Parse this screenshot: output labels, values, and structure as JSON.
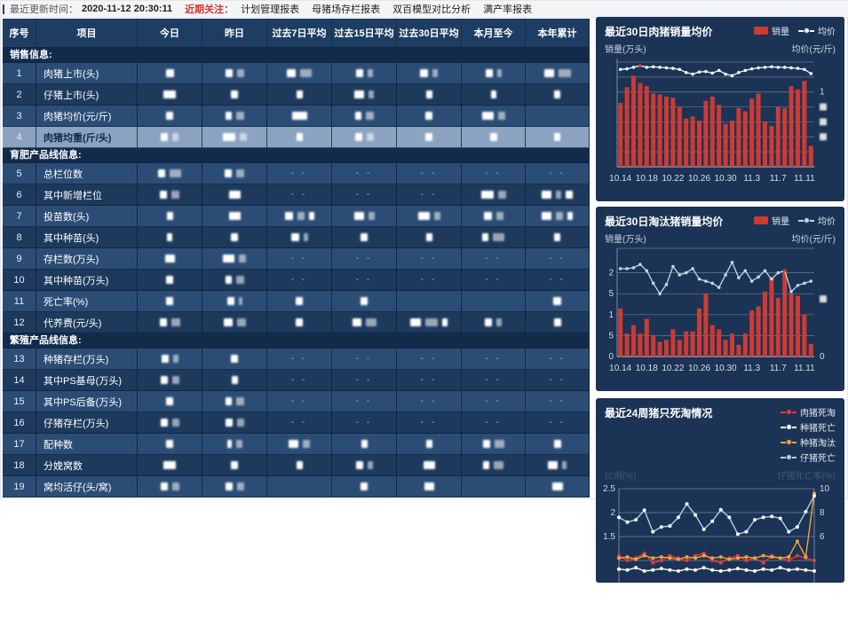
{
  "topbar": {
    "updated_label": "最近更新时间：",
    "updated_time": "2020-11-12 20:30:11",
    "focus_label": "近期关注：",
    "links": [
      "计划管理报表",
      "母猪场存栏报表",
      "双百模型对比分析",
      "满产率报表"
    ]
  },
  "table": {
    "columns": [
      "序号",
      "项目",
      "今日",
      "昨日",
      "过去7日平均",
      "过去15日平均",
      "过去30日平均",
      "本月至今",
      "本年累计"
    ],
    "redacted_note": "数值已打码",
    "sections": [
      {
        "title": "销售信息:",
        "rows": [
          {
            "no": "1",
            "label": "肉猪上市(头)",
            "cells": [
              [
                9
              ],
              [
                8,
                8
              ],
              [
                10,
                13
              ],
              [
                8,
                6
              ],
              [
                9,
                6
              ],
              [
                8,
                5
              ],
              [
                11,
                14
              ]
            ]
          },
          {
            "no": "2",
            "label": "仔猪上市(头)",
            "cells": [
              [
                14
              ],
              [
                8
              ],
              [
                7
              ],
              [
                11,
                6
              ],
              [
                7
              ],
              [
                6
              ],
              [
                7
              ]
            ]
          },
          {
            "no": "3",
            "label": "肉猪均价(元/斤)",
            "cells": [
              [
                8
              ],
              [
                7,
                9
              ],
              [
                17
              ],
              [
                7,
                9
              ],
              [
                8
              ],
              [
                13,
                8
              ],
              null
            ]
          },
          {
            "no": "4",
            "label": "肉猪均重(斤/头)",
            "highlight": true,
            "cells": [
              [
                8,
                7
              ],
              [
                14,
                8
              ],
              [
                7
              ],
              [
                8,
                8
              ],
              [
                8
              ],
              [
                8
              ],
              [
                7
              ]
            ]
          }
        ]
      },
      {
        "title": "育肥产品线信息:",
        "rows": [
          {
            "no": "5",
            "label": "总栏位数",
            "cells": [
              [
                8,
                13
              ],
              [
                8,
                9
              ],
              "--",
              "--",
              "--",
              "--",
              "--"
            ]
          },
          {
            "no": "6",
            "label": "其中新增栏位",
            "cells": [
              [
                8,
                9
              ],
              [
                13
              ],
              "--",
              "--",
              "--",
              [
                14,
                9
              ],
              [
                11,
                6,
                8
              ]
            ]
          },
          {
            "no": "7",
            "label": "投苗数(头)",
            "cells": [
              [
                7
              ],
              [
                13
              ],
              [
                9,
                8,
                6
              ],
              [
                11,
                7
              ],
              [
                13,
                7
              ],
              [
                9,
                8
              ],
              [
                11,
                8,
                6
              ]
            ]
          },
          {
            "no": "8",
            "label": "其中种苗(头)",
            "cells": [
              [
                6
              ],
              [
                8
              ],
              [
                9,
                5
              ],
              [
                8
              ],
              [
                7
              ],
              [
                7,
                13
              ],
              [
                7
              ]
            ]
          },
          {
            "no": "9",
            "label": "存栏数(万头)",
            "cells": [
              [
                11
              ],
              [
                13,
                8
              ],
              "--",
              "--",
              "--",
              "--",
              "--"
            ]
          },
          {
            "no": "10",
            "label": "其中种苗(万头)",
            "cells": [
              [
                8
              ],
              [
                7,
                9
              ],
              "--",
              "--",
              "--",
              "--",
              "--"
            ]
          },
          {
            "no": "11",
            "label": "死亡率(%)",
            "cells": [
              [
                8
              ],
              [
                8,
                4
              ],
              [
                8
              ],
              [
                8
              ],
              null,
              null,
              [
                9
              ]
            ]
          },
          {
            "no": "12",
            "label": "代养费(元/头)",
            "cells": [
              [
                8,
                10
              ],
              [
                10,
                10
              ],
              [
                8
              ],
              [
                10,
                12
              ],
              [
                12,
                14,
                6
              ],
              [
                8,
                6
              ],
              [
                8
              ]
            ]
          }
        ]
      },
      {
        "title": "繁殖产品线信息:",
        "rows": [
          {
            "no": "13",
            "label": "种猪存栏(万头)",
            "cells": [
              [
                8,
                6
              ],
              [
                8
              ],
              "--",
              "--",
              "--",
              "--",
              "--"
            ]
          },
          {
            "no": "14",
            "label": "其中PS基母(万头)",
            "cells": [
              [
                8,
                8
              ],
              [
                7
              ],
              "--",
              "--",
              "--",
              "--",
              "--"
            ]
          },
          {
            "no": "15",
            "label": "其中PS后备(万头)",
            "cells": [
              [
                8
              ],
              [
                7,
                9
              ],
              "--",
              "--",
              "--",
              "--",
              "--"
            ]
          },
          {
            "no": "16",
            "label": "仔猪存栏(万头)",
            "cells": [
              [
                8,
                8
              ],
              [
                8,
                8
              ],
              "--",
              "--",
              "--",
              "--",
              "--"
            ]
          },
          {
            "no": "17",
            "label": "配种数",
            "cells": [
              [
                8
              ],
              [
                5,
                7
              ],
              [
                11,
                8
              ],
              [
                7
              ],
              [
                7
              ],
              [
                8,
                11
              ],
              [
                8
              ]
            ]
          },
          {
            "no": "18",
            "label": "分娩窝数",
            "cells": [
              [
                14
              ],
              [
                8
              ],
              [
                7
              ],
              [
                8,
                6
              ],
              [
                13
              ],
              [
                7,
                11
              ],
              [
                11,
                5
              ]
            ]
          },
          {
            "no": "19",
            "label": "窝均活仔(头/窝)",
            "cells": [
              [
                8,
                8
              ],
              [
                8,
                8
              ],
              null,
              [
                8
              ],
              [
                11
              ],
              null,
              [
                12
              ]
            ]
          }
        ]
      }
    ]
  },
  "charts": [
    {
      "type": "bar+line",
      "title": "最近30日肉猪销量均价",
      "ylabel_left": "销量(万头)",
      "ylabel_right": "均价(元/斤)",
      "legend": [
        {
          "label": "销量",
          "icon": "bar",
          "color": "#cc3b33"
        },
        {
          "label": "均价",
          "icon": "line",
          "color": "#f2f7fc"
        }
      ],
      "x_ticks": [
        "10.14",
        "10.18",
        "10.22",
        "10.26",
        "10.30",
        "11.3",
        "11.7",
        "11.11"
      ],
      "ylim": [
        0,
        10
      ],
      "right_tick_label": "1",
      "right_redacted_ticks": 3,
      "bar_color": "#cc3b33",
      "line_color": "#f2f7fc",
      "marker_color": "#e23b30",
      "line_marker_index": 3,
      "bars": [
        6.1,
        7.6,
        8.7,
        8.0,
        7.7,
        7.0,
        6.9,
        6.7,
        6.6,
        5.7,
        4.6,
        4.8,
        4.4,
        6.3,
        6.7,
        5.9,
        4.1,
        4.4,
        5.6,
        5.3,
        6.5,
        7.0,
        4.3,
        3.9,
        5.7,
        5.6,
        7.7,
        7.4,
        8.2,
        2.0
      ],
      "line": [
        9.3,
        9.35,
        9.5,
        9.65,
        9.5,
        9.55,
        9.5,
        9.45,
        9.4,
        9.3,
        9.0,
        8.85,
        9.05,
        9.1,
        8.95,
        9.2,
        8.85,
        8.7,
        9.0,
        9.2,
        9.35,
        9.45,
        9.5,
        9.55,
        9.5,
        9.5,
        9.45,
        9.4,
        9.3,
        8.9
      ]
    },
    {
      "type": "bar+line",
      "title": "最近30日淘汰猪销量均价",
      "ylabel_left": "销量(万头)",
      "ylabel_right": "均价(元/斤)",
      "legend": [
        {
          "label": "销量",
          "icon": "bar",
          "color": "#cc3b33"
        },
        {
          "label": "均价",
          "icon": "line",
          "color": "#bcd8ee"
        }
      ],
      "x_ticks": [
        "10.14",
        "10.18",
        "10.22",
        "10.26",
        "10.30",
        "11.3",
        "11.7",
        "11.11"
      ],
      "ylim": [
        0,
        2.5
      ],
      "left_tick_values": [
        0,
        0.5,
        1,
        1.5,
        2
      ],
      "left_tick_labels": [
        "0",
        "5",
        "1",
        "5",
        "2"
      ],
      "right_tick_label": "0",
      "bar_color": "#cc3b33",
      "line_color": "#bcd8ee",
      "marker_color": "#e23b30",
      "line_marker_index": 25,
      "bars": [
        1.15,
        0.55,
        0.75,
        0.55,
        0.9,
        0.5,
        0.35,
        0.4,
        0.65,
        0.4,
        0.6,
        0.6,
        1.15,
        1.5,
        0.75,
        0.65,
        0.4,
        0.55,
        0.28,
        0.55,
        1.1,
        1.2,
        1.55,
        1.9,
        1.4,
        2.05,
        1.5,
        1.45,
        1.0,
        0.3
      ],
      "line": [
        2.1,
        2.1,
        2.12,
        2.2,
        2.05,
        1.75,
        1.5,
        1.72,
        2.15,
        1.95,
        2.0,
        2.1,
        1.85,
        1.8,
        1.75,
        1.65,
        1.95,
        2.25,
        1.88,
        2.05,
        1.8,
        1.9,
        2.05,
        1.85,
        2.0,
        2.05,
        1.55,
        1.7,
        1.75,
        1.8
      ]
    },
    {
      "type": "multi-line",
      "title": "最近24周猪只死淘情况",
      "ylabel_left": "比例(%)",
      "ylabel_right": "仔猪死亡率(%)",
      "legend": [
        {
          "label": "肉猪死淘",
          "icon": "line",
          "color": "#e23b3b"
        },
        {
          "label": "种猪死亡",
          "icon": "line",
          "color": "#ffffff"
        },
        {
          "label": "种猪淘汰",
          "icon": "line",
          "color": "#f0a33c"
        },
        {
          "label": "仔猪死亡",
          "icon": "line",
          "color": "#a8d2ef"
        }
      ],
      "left_ticks": [
        "2.5",
        "2",
        "1.5"
      ],
      "right_ticks": [
        "10",
        "8",
        "6"
      ],
      "series": [
        {
          "name": "肉猪死淘",
          "axis": "left",
          "color": "#e23b3b",
          "values": [
            1.1,
            1.0,
            1.05,
            1.15,
            0.95,
            1.0,
            1.1,
            1.05,
            1.0,
            1.1,
            1.15,
            1.0,
            0.95,
            1.05,
            1.1,
            1.0,
            1.05,
            0.95,
            1.1,
            1.05,
            1.0,
            1.1,
            1.05,
            1.0
          ]
        },
        {
          "name": "种猪死亡",
          "axis": "left",
          "color": "#ffffff",
          "values": [
            0.82,
            0.8,
            0.85,
            0.78,
            0.8,
            0.83,
            0.8,
            0.78,
            0.82,
            0.8,
            0.85,
            0.8,
            0.78,
            0.8,
            0.83,
            0.8,
            0.78,
            0.82,
            0.8,
            0.85,
            0.8,
            0.82,
            0.8,
            0.78
          ]
        },
        {
          "name": "种猪淘汰",
          "axis": "right",
          "color": "#f0a33c",
          "values": [
            4.2,
            4.3,
            4.1,
            4.4,
            4.2,
            4.3,
            4.2,
            4.1,
            4.3,
            4.2,
            4.4,
            4.2,
            4.3,
            4.1,
            4.2,
            4.3,
            4.2,
            4.4,
            4.3,
            4.2,
            4.3,
            5.6,
            4.3,
            9.6
          ]
        },
        {
          "name": "仔猪死亡",
          "axis": "left",
          "color": "#a8d2ef",
          "values": [
            1.9,
            1.8,
            1.85,
            2.05,
            1.6,
            1.7,
            1.72,
            1.9,
            2.18,
            1.95,
            1.65,
            1.82,
            2.06,
            1.9,
            1.55,
            1.6,
            1.85,
            1.9,
            1.92,
            1.88,
            1.6,
            1.7,
            2.02,
            2.35
          ]
        }
      ]
    }
  ]
}
